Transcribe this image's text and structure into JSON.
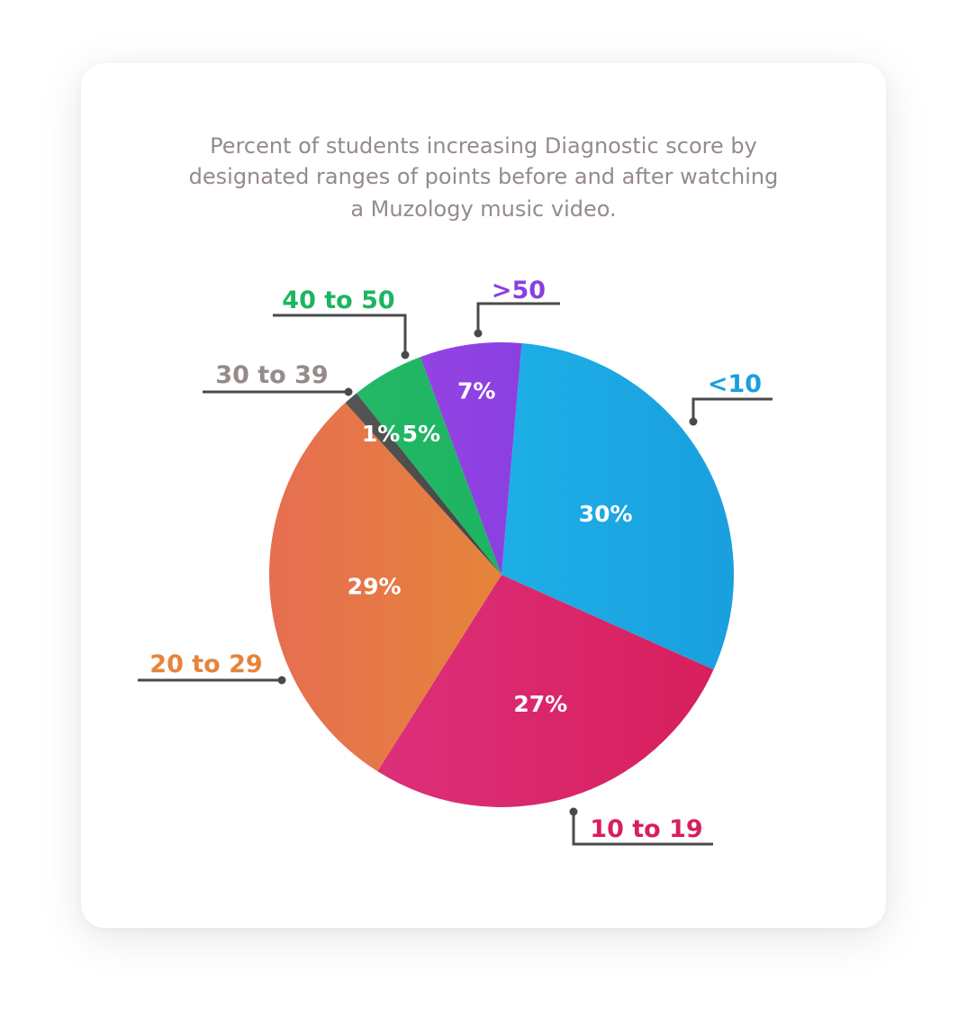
{
  "chart_data": {
    "type": "pie",
    "title_lines": [
      "Percent of students increasing Diagnostic score by",
      "designated ranges of points before and after watching",
      "a Muzology music video."
    ],
    "slices": [
      {
        "label": "<10",
        "value": 30,
        "value_label": "30%",
        "color": "#1a9fdf",
        "color_light": "#1dafe6",
        "text_color": "#1a9fdf"
      },
      {
        "label": "10 to 19",
        "value": 27,
        "value_label": "27%",
        "color": "#d81f5c",
        "color_light": "#dc2f7a",
        "text_color": "#d81f5c"
      },
      {
        "label": "20 to 29",
        "value": 29,
        "value_label": "29%",
        "color": "#e5843a",
        "color_light": "#e66e52",
        "text_color": "#e5843a"
      },
      {
        "label": "30 to 39",
        "value": 1,
        "value_label": "1%",
        "color": "#444444",
        "color_light": "#555555",
        "text_color": "#968a8a"
      },
      {
        "label": "40 to 50",
        "value": 5,
        "value_label": "5%",
        "color": "#1db462",
        "color_light": "#23b865",
        "text_color": "#1db462"
      },
      {
        "label": ">50",
        "value": 7,
        "value_label": "7%",
        "color": "#8a3fe0",
        "color_light": "#9443e4",
        "text_color": "#8a3fe0"
      }
    ],
    "legend": "leader-line callouts"
  }
}
